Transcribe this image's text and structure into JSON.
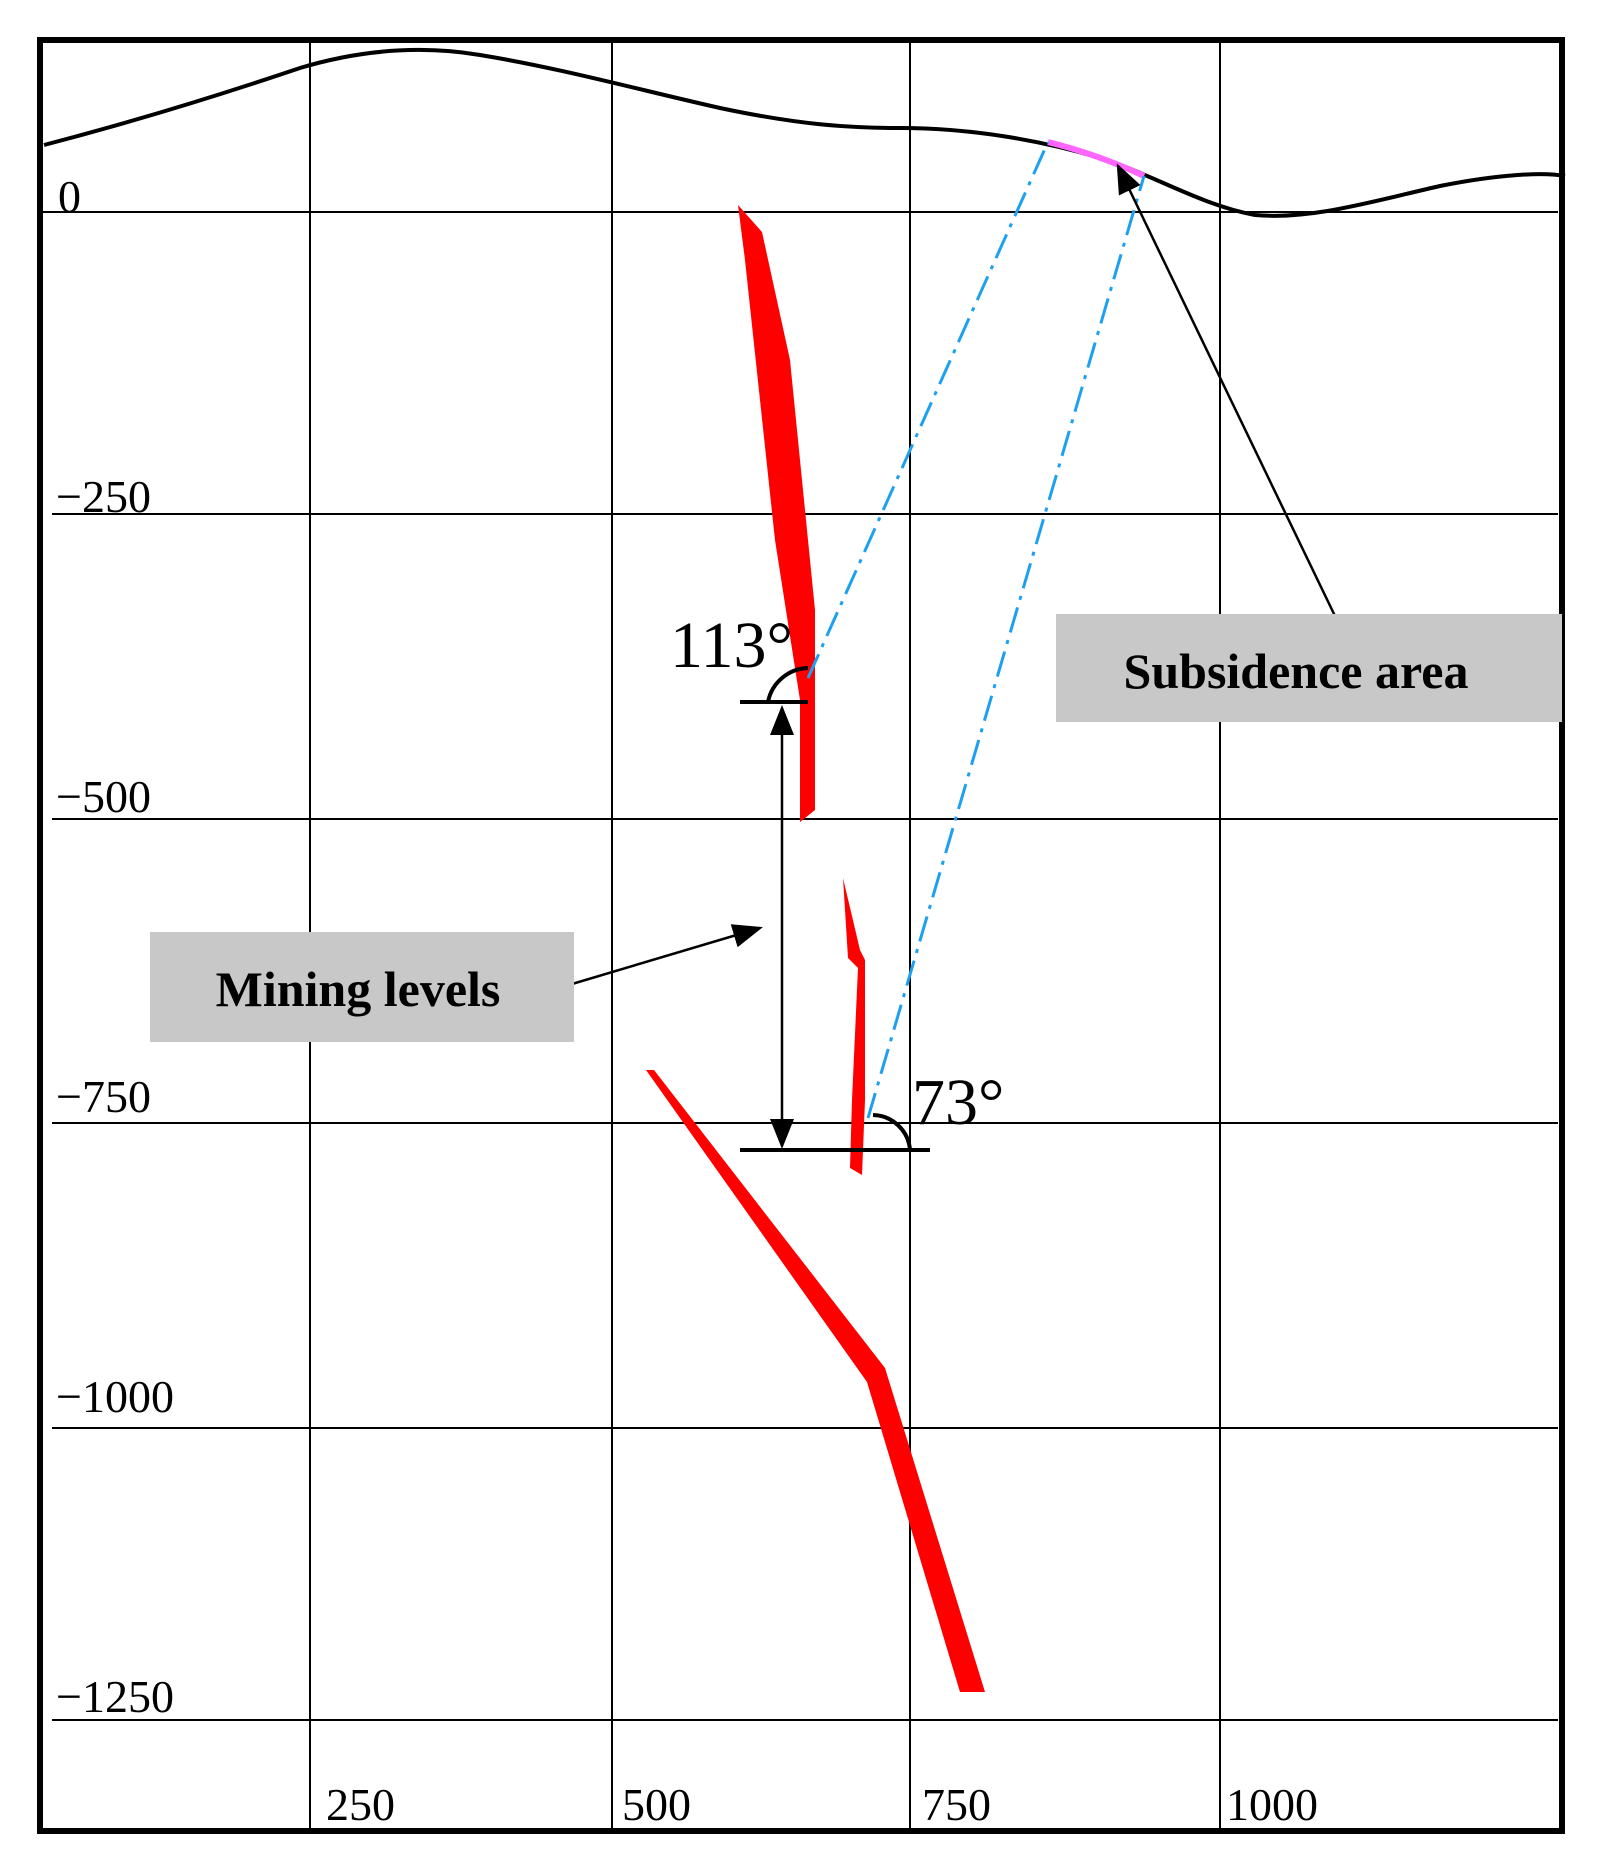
{
  "axes": {
    "y_ticks": [
      "0",
      "−250",
      "−500",
      "−750",
      "−1000",
      "−1250"
    ],
    "x_ticks": [
      "250",
      "500",
      "750",
      "1000"
    ]
  },
  "annotations": {
    "angle_upper": "113°",
    "angle_lower": "73°",
    "subsidence_label": "Subsidence area",
    "mining_label": "Mining levels"
  },
  "colors": {
    "ore_body": "#ff0000",
    "projection_line": "#1ea0f0",
    "subsidence_segment": "#ff66ff",
    "label_box": "#c8c8c8",
    "grid": "#000000"
  }
}
